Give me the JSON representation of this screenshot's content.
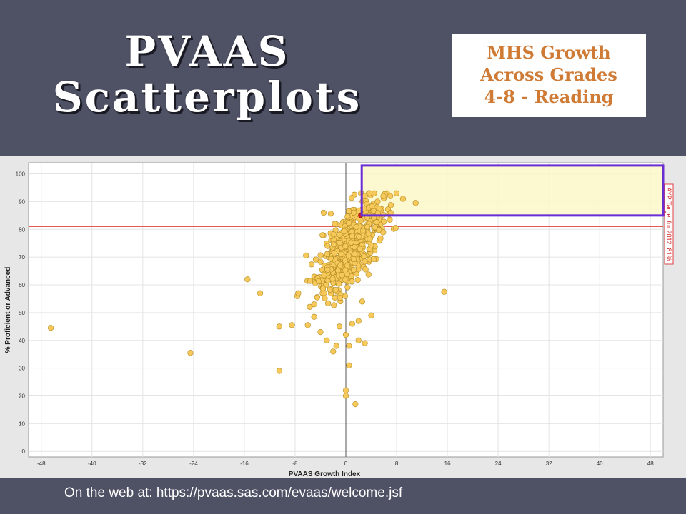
{
  "slide": {
    "title_lines": [
      "PVAAS",
      "Scatterplots"
    ],
    "subtitle_lines": [
      "MHS Growth",
      "Across Grades",
      "4-8 - Reading"
    ],
    "footer": "On the web at: https://pvaas.sas.com/evaas/welcome.jsf"
  },
  "colors": {
    "background": "#4f5165",
    "point_fill": "#f7c95a",
    "point_stroke": "#b08a22",
    "reference_line": "#e04040",
    "highlight_border": "#6a2fd4",
    "highlight_fill": "#fbf8c8",
    "highlighted_point": "#d62020"
  },
  "chart_data": {
    "type": "scatter",
    "title": "",
    "xlabel": "PVAAS Growth Index",
    "ylabel": "% Proficient or Advanced",
    "xlim": [
      -50,
      50
    ],
    "ylim": [
      -2,
      104
    ],
    "x_ticks": [
      -48,
      -40,
      -32,
      -24,
      -16,
      -8,
      0,
      8,
      16,
      24,
      32,
      40,
      48
    ],
    "y_ticks": [
      0,
      10,
      20,
      30,
      40,
      50,
      60,
      70,
      80,
      90,
      100
    ],
    "grid": true,
    "reference_line": {
      "axis": "y",
      "value": 81,
      "label": "AYP Target for 2012: 81%"
    },
    "highlight_region": {
      "x": [
        2.5,
        50
      ],
      "y": [
        85,
        103
      ]
    },
    "highlighted_point": {
      "x": 2.3,
      "y": 85
    },
    "outliers": [
      [
        -46.5,
        44.5
      ],
      [
        -24.5,
        35.5
      ],
      [
        -15.5,
        62
      ],
      [
        -13.5,
        57
      ],
      [
        -10.5,
        45
      ],
      [
        -10.5,
        29
      ],
      [
        -8.5,
        45.5
      ],
      [
        -7.5,
        57
      ],
      [
        -6,
        45.5
      ],
      [
        -5,
        48.5
      ],
      [
        -4,
        43
      ],
      [
        -3,
        40
      ],
      [
        -2,
        36
      ],
      [
        -1,
        45
      ],
      [
        0,
        42
      ],
      [
        0.5,
        31
      ],
      [
        0,
        22
      ],
      [
        0,
        20
      ],
      [
        1.5,
        17
      ],
      [
        0.5,
        38
      ],
      [
        1,
        46
      ],
      [
        2,
        47
      ],
      [
        3,
        39
      ],
      [
        4,
        49
      ],
      [
        15.5,
        57.5
      ],
      [
        2,
        40
      ],
      [
        -1.5,
        38
      ],
      [
        3,
        92
      ],
      [
        5,
        90
      ],
      [
        7,
        92
      ],
      [
        8,
        93
      ],
      [
        9,
        91
      ],
      [
        11,
        89.5
      ],
      [
        -3.5,
        86
      ]
    ],
    "cluster": {
      "count": 520,
      "x_mean": 0.8,
      "x_sd": 2.6,
      "y_mean": 74,
      "y_sd": 8.5,
      "correlation": 0.62
    }
  }
}
